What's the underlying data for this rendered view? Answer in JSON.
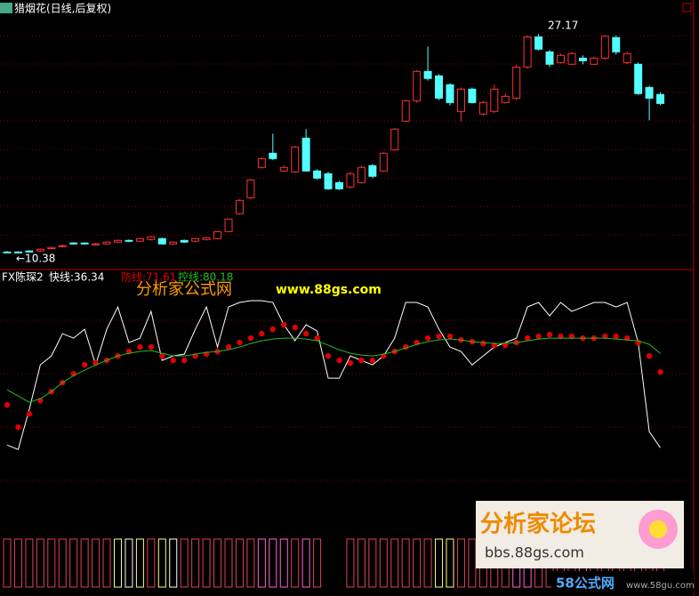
{
  "chart_data": [
    {
      "type": "candlestick",
      "title": "猎烟花(日线,后复权)",
      "up_color": "#ff3232",
      "down_color": "#54ffff",
      "ylim": [
        9.3,
        29.1
      ],
      "annotations": [
        "27.17",
        "←10.38"
      ],
      "open": [
        10.44,
        10.44,
        10.52,
        10.52,
        10.7,
        10.85,
        11.13,
        11.13,
        10.99,
        11.06,
        11.2,
        11.33,
        11.27,
        11.4,
        11.47,
        11.06,
        11.33,
        11.27,
        11.4,
        11.47,
        12.01,
        13.38,
        14.61,
        16.93,
        18.02,
        16.66,
        16.59,
        19.18,
        16.66,
        16.45,
        15.77,
        15.43,
        15.77,
        17.07,
        16.66,
        18.29,
        20.48,
        22.05,
        24.3,
        23.96,
        23.28,
        21.23,
        22.94,
        21.03,
        21.23,
        21.91,
        22.25,
        24.64,
        26.95,
        25.8,
        24.98,
        24.85,
        25.32,
        24.85,
        25.32,
        26.9,
        24.98,
        24.85,
        23.07,
        22.53
      ],
      "high": [
        10.52,
        10.5,
        10.58,
        10.72,
        10.86,
        11.0,
        11.2,
        11.18,
        11.13,
        11.27,
        11.4,
        11.4,
        11.54,
        11.68,
        11.54,
        11.27,
        11.4,
        11.54,
        11.61,
        12.08,
        13.04,
        14.5,
        16.05,
        17.7,
        19.52,
        17.07,
        18.6,
        19.87,
        16.8,
        16.6,
        15.9,
        16.6,
        17.07,
        17.2,
        18.1,
        19.95,
        22.15,
        24.4,
        26.21,
        24.1,
        23.4,
        23.07,
        23.07,
        22.05,
        23.28,
        22.6,
        24.8,
        27.05,
        27.17,
        25.95,
        25.67,
        25.8,
        25.53,
        25.45,
        27.1,
        27.05,
        25.8,
        24.98,
        23.2,
        22.7
      ],
      "low": [
        10.38,
        10.39,
        10.38,
        10.45,
        10.65,
        10.79,
        11.0,
        10.99,
        10.92,
        11.0,
        11.13,
        11.2,
        11.2,
        11.33,
        11.0,
        10.99,
        11.13,
        11.2,
        11.33,
        11.4,
        11.95,
        13.3,
        14.5,
        16.85,
        17.5,
        16.59,
        16.5,
        16.59,
        16.0,
        15.2,
        15.2,
        15.29,
        15.7,
        16.11,
        16.59,
        18.2,
        20.4,
        21.91,
        23.6,
        22.1,
        21.7,
        20.48,
        21.84,
        20.9,
        21.1,
        21.84,
        22.1,
        24.5,
        25.9,
        24.64,
        24.9,
        24.78,
        24.85,
        24.78,
        25.2,
        25.6,
        24.85,
        22.5,
        20.55,
        21.7
      ],
      "close": [
        10.4,
        10.41,
        10.44,
        10.65,
        10.79,
        10.92,
        11.06,
        11.06,
        11.06,
        11.2,
        11.33,
        11.27,
        11.47,
        11.61,
        11.06,
        11.2,
        11.2,
        11.47,
        11.54,
        12.01,
        12.97,
        14.4,
        15.97,
        17.61,
        17.61,
        16.93,
        18.5,
        16.66,
        16.11,
        15.29,
        15.29,
        16.45,
        16.93,
        16.25,
        18.02,
        19.87,
        22.05,
        24.3,
        23.76,
        22.25,
        21.91,
        22.94,
        21.91,
        21.91,
        22.94,
        22.39,
        24.64,
        26.95,
        26.01,
        24.85,
        25.53,
        25.67,
        25.12,
        25.32,
        27.0,
        25.8,
        25.67,
        22.6,
        22.25,
        21.84
      ]
    },
    {
      "type": "line",
      "title": "FX陈琛2",
      "ylim": [
        0,
        118.5
      ],
      "series": [
        {
          "name": "快线:36.34",
          "color": "#ffffff",
          "style": "line",
          "values": [
            37.59,
            35.51,
            54.18,
            74.93,
            79.08,
            89.46,
            87.38,
            91.54,
            74.93,
            91.54,
            101.91,
            85.31,
            87.38,
            99.84,
            77.01,
            79.08,
            79.92,
            91.54,
            101.91,
            83.24,
            101.91,
            103.99,
            104.82,
            104.82,
            103.99,
            93.61,
            86.14,
            93.61,
            90.71,
            68.71,
            68.71,
            79.08,
            77.01,
            74.93,
            79.08,
            87.38,
            103.99,
            103.99,
            101.91,
            91.54,
            83.24,
            81.16,
            74.93,
            79.08,
            83.24,
            85.31,
            87.38,
            101.91,
            103.99,
            97.76,
            103.99,
            99.84,
            101.91,
            103.99,
            103.99,
            101.91,
            103.99,
            85.31,
            43.81,
            36.34
          ]
        },
        {
          "name": "防线:71.61",
          "color": "#e00000",
          "style": "dots",
          "values": [
            56.26,
            45.89,
            52.11,
            58.34,
            62.49,
            66.64,
            70.79,
            74.93,
            75.77,
            77.01,
            79.08,
            81.16,
            83.24,
            83.24,
            79.08,
            77.01,
            77.01,
            79.08,
            79.92,
            81.16,
            83.24,
            85.31,
            87.38,
            89.46,
            91.54,
            93.61,
            92.37,
            89.46,
            87.38,
            79.08,
            77.01,
            75.77,
            77.01,
            77.01,
            79.08,
            81.16,
            83.24,
            85.31,
            87.38,
            88.22,
            88.22,
            86.56,
            85.73,
            84.9,
            84.07,
            84.07,
            85.31,
            87.38,
            88.22,
            89.05,
            88.22,
            88.22,
            87.38,
            87.38,
            88.22,
            88.22,
            87.38,
            85.31,
            79.08,
            71.61
          ]
        },
        {
          "name": "控线:80.18",
          "color": "#22bb22",
          "style": "line",
          "values": [
            63.32,
            60.41,
            57.51,
            59.17,
            62.49,
            66.64,
            69.96,
            72.45,
            74.93,
            77.01,
            79.08,
            80.33,
            81.16,
            81.57,
            80.33,
            79.08,
            79.08,
            79.92,
            80.75,
            81.16,
            82.0,
            83.24,
            84.9,
            86.14,
            86.97,
            87.38,
            87.38,
            86.97,
            86.14,
            84.07,
            82.0,
            80.33,
            79.5,
            79.08,
            79.92,
            81.16,
            82.82,
            84.48,
            85.73,
            86.56,
            86.97,
            86.56,
            85.73,
            85.31,
            84.9,
            84.9,
            85.31,
            86.14,
            86.97,
            87.38,
            87.38,
            87.38,
            87.38,
            87.38,
            87.38,
            86.97,
            86.56,
            86.14,
            84.48,
            80.18
          ]
        }
      ],
      "signal_colors": [
        "#e0405a",
        "#e0405a",
        "#e0405a",
        "#e0405a",
        "#e0405a",
        "#e0405a",
        "#e0405a",
        "#e0405a",
        "#e0405a",
        "#e0405a",
        "#ffff80",
        "#ffffff",
        "#ffff80",
        "#e0405a",
        "#ffff80",
        "#ffffff",
        "#e0405a",
        "#e0405a",
        "#e0405a",
        "#e0405a",
        "#e0405a",
        "#e0405a",
        "#e0405a",
        "#ff66cc",
        "#ff66cc",
        "#ff66cc",
        "#e0405a",
        "#ff66cc",
        "#e0405a",
        null,
        null,
        "#e0405a",
        "#e0405a",
        "#e0405a",
        "#e0405a",
        "#e0405a",
        "#e0405a",
        "#e0405a",
        "#e0405a",
        "#ffff80",
        "#ffff80",
        "#e0405a",
        "#e0405a",
        "#e0405a",
        "#e0405a",
        "#e0405a",
        "#ff66cc",
        "#ff66cc",
        "#e0405a",
        "#e0405a",
        "#e0405a",
        "#e0405a",
        "#ff66cc",
        "#e0405a",
        "#e0405a",
        "#e0405a",
        "#e0405a",
        "#e0405a",
        "#e0405a",
        "#e0405a"
      ]
    }
  ],
  "watermarks": {
    "site": "分析家公式网",
    "url": "www.88gs.com",
    "logo": "分析家论坛",
    "bbs": "bbs.88gs.com",
    "brand": "58公式网",
    "brand_url": "www.58gu.com"
  }
}
